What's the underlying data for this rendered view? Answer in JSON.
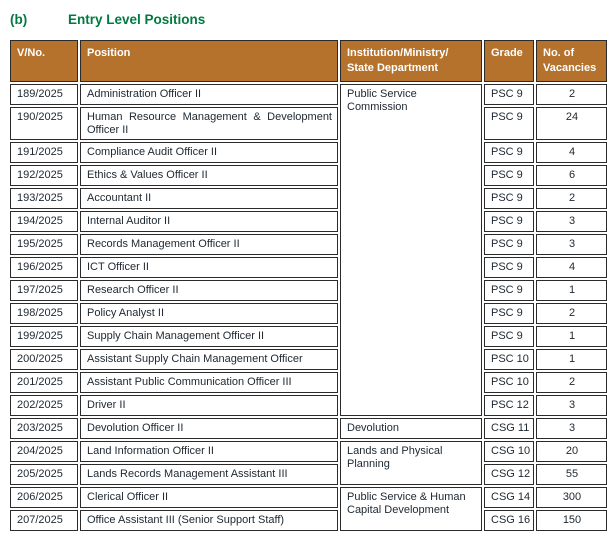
{
  "heading": {
    "label": "(b)",
    "title": "Entry Level Positions"
  },
  "colors": {
    "header_bg": "#b5722d",
    "heading_green": "#007a40",
    "border": "#2b2b2b",
    "body_text": "#1d2731",
    "header_text": "#ffffff"
  },
  "table": {
    "headers": [
      "V/No.",
      "Position",
      "Institution/Ministry/\nState Department",
      "Grade",
      "No. of\nVacancies"
    ],
    "rows": [
      {
        "vno": "189/2025",
        "position": "Administration Officer II",
        "institution": "Public Service Commission",
        "institution_rowspan": 14,
        "grade": "PSC 9",
        "vacancies": "2"
      },
      {
        "vno": "190/2025",
        "position": "Human Resource Management & Development Officer II",
        "grade": "PSC 9",
        "vacancies": "24"
      },
      {
        "vno": "191/2025",
        "position": "Compliance Audit Officer II",
        "grade": "PSC 9",
        "vacancies": "4"
      },
      {
        "vno": "192/2025",
        "position": "Ethics & Values Officer II",
        "grade": "PSC 9",
        "vacancies": "6"
      },
      {
        "vno": "193/2025",
        "position": "Accountant II",
        "grade": "PSC 9",
        "vacancies": "2"
      },
      {
        "vno": "194/2025",
        "position": "Internal Auditor II",
        "grade": "PSC 9",
        "vacancies": "3"
      },
      {
        "vno": "195/2025",
        "position": "Records Management Officer II",
        "grade": "PSC 9",
        "vacancies": "3"
      },
      {
        "vno": "196/2025",
        "position": "ICT Officer II",
        "grade": "PSC 9",
        "vacancies": "4"
      },
      {
        "vno": "197/2025",
        "position": "Research Officer II",
        "grade": "PSC 9",
        "vacancies": "1"
      },
      {
        "vno": "198/2025",
        "position": "Policy Analyst II",
        "grade": "PSC 9",
        "vacancies": "2"
      },
      {
        "vno": "199/2025",
        "position": "Supply Chain Management Officer II",
        "grade": "PSC 9",
        "vacancies": "1"
      },
      {
        "vno": "200/2025",
        "position": "Assistant Supply Chain Management Officer",
        "grade": "PSC 10",
        "vacancies": "1"
      },
      {
        "vno": "201/2025",
        "position": "Assistant Public Communication Officer III",
        "grade": "PSC 10",
        "vacancies": "2"
      },
      {
        "vno": "202/2025",
        "position": "Driver II",
        "grade": "PSC 12",
        "vacancies": "3"
      },
      {
        "vno": "203/2025",
        "position": "Devolution Officer II",
        "institution": "Devolution",
        "institution_rowspan": 1,
        "grade": "CSG 11",
        "vacancies": "3"
      },
      {
        "vno": "204/2025",
        "position": "Land Information Officer II",
        "institution": "Lands and Physical Planning",
        "institution_rowspan": 2,
        "grade": "CSG 10",
        "vacancies": "20"
      },
      {
        "vno": "205/2025",
        "position": "Lands Records Management Assistant III",
        "grade": "CSG 12",
        "vacancies": "55"
      },
      {
        "vno": "206/2025",
        "position": "Clerical Officer II",
        "institution": "Public Service & Human Capital Development",
        "institution_rowspan": 2,
        "grade": "CSG 14",
        "vacancies": "300"
      },
      {
        "vno": "207/2025",
        "position": "Office Assistant III (Senior Support Staff)",
        "grade": "CSG 16",
        "vacancies": "150"
      }
    ]
  }
}
